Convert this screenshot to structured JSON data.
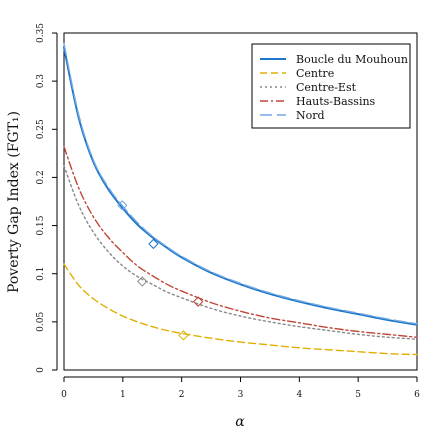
{
  "chart_data": {
    "type": "line",
    "title": "",
    "xlabel": "α",
    "ylabel": "Poverty Gap Index (FGT₁)",
    "xlim": [
      0,
      6
    ],
    "ylim": [
      0,
      0.35
    ],
    "grid": false,
    "legend_position": "top-right",
    "x_ticks": [
      "0",
      "1",
      "2",
      "3",
      "4",
      "5",
      "6"
    ],
    "y_ticks": [
      "0",
      "0.05",
      "0.1",
      "0.15",
      "0.2",
      "0.25",
      "0.3",
      "0.35"
    ],
    "x": [
      0.0,
      0.25,
      0.5,
      0.75,
      1.0,
      1.25,
      1.5,
      1.75,
      2.0,
      2.5,
      3.0,
      3.5,
      4.0,
      4.5,
      5.0,
      5.5,
      6.0
    ],
    "series": [
      {
        "name": "Boucle du Mouhoun",
        "color": "#1f77c9",
        "style": "solid",
        "values": [
          0.335,
          0.262,
          0.216,
          0.188,
          0.168,
          0.151,
          0.138,
          0.127,
          0.117,
          0.101,
          0.089,
          0.079,
          0.071,
          0.064,
          0.058,
          0.052,
          0.047
        ],
        "marker": {
          "x": 1.52,
          "y": 0.131
        }
      },
      {
        "name": "Centre",
        "color": "#e0b000",
        "style": "dashed",
        "values": [
          0.11,
          0.088,
          0.074,
          0.064,
          0.056,
          0.05,
          0.045,
          0.041,
          0.038,
          0.033,
          0.029,
          0.026,
          0.023,
          0.021,
          0.019,
          0.017,
          0.016
        ],
        "marker": {
          "x": 2.03,
          "y": 0.036
        }
      },
      {
        "name": "Centre-Est",
        "color": "#888888",
        "style": "dotted",
        "values": [
          0.212,
          0.171,
          0.143,
          0.123,
          0.108,
          0.097,
          0.089,
          0.081,
          0.075,
          0.064,
          0.056,
          0.05,
          0.045,
          0.041,
          0.037,
          0.034,
          0.032
        ],
        "marker": {
          "x": 1.33,
          "y": 0.092
        }
      },
      {
        "name": "Hauts-Bassins",
        "color": "#c0463a",
        "style": "dashdot",
        "values": [
          0.232,
          0.189,
          0.159,
          0.138,
          0.122,
          0.108,
          0.098,
          0.089,
          0.082,
          0.07,
          0.061,
          0.054,
          0.049,
          0.044,
          0.04,
          0.037,
          0.034
        ],
        "marker": {
          "x": 2.28,
          "y": 0.071
        }
      },
      {
        "name": "Nord",
        "color": "#74a9e3",
        "style": "longdash",
        "values": [
          0.339,
          0.265,
          0.218,
          0.19,
          0.17,
          0.153,
          0.139,
          0.128,
          0.118,
          0.102,
          0.09,
          0.08,
          0.072,
          0.065,
          0.059,
          0.053,
          0.048
        ],
        "marker": {
          "x": 0.99,
          "y": 0.171
        }
      }
    ]
  }
}
